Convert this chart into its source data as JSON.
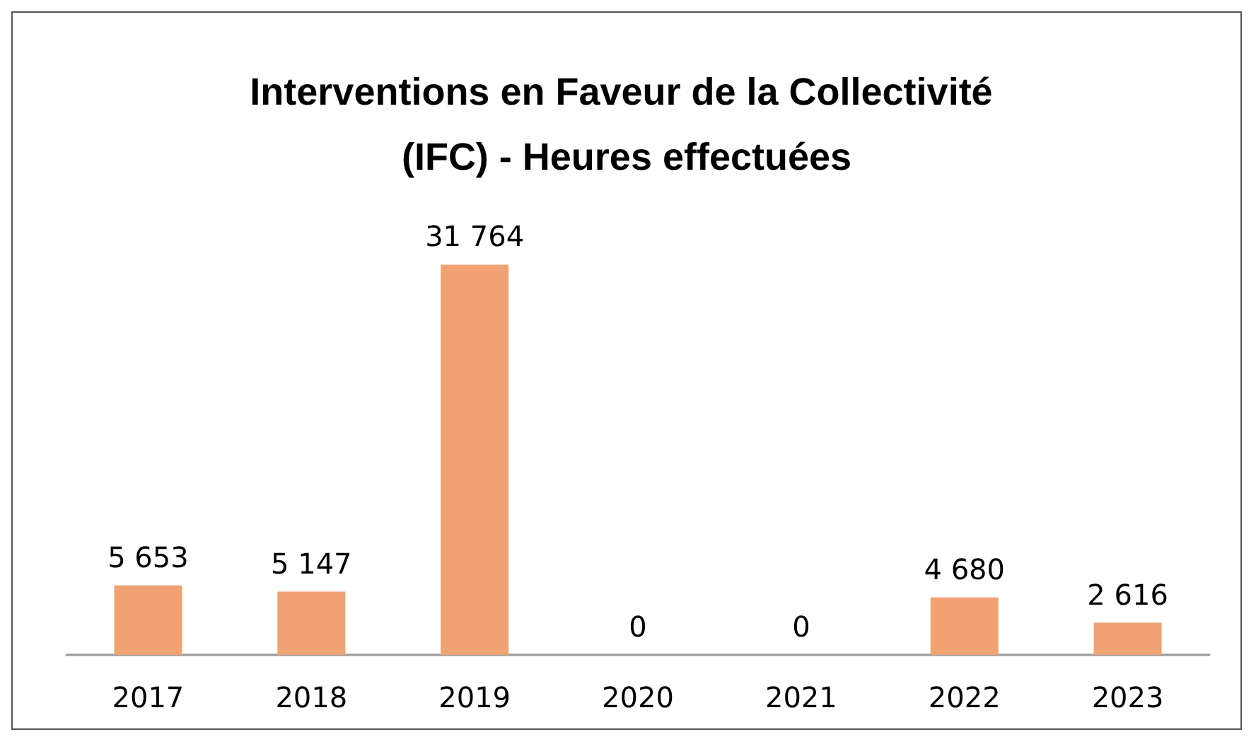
{
  "chart_data": {
    "type": "bar",
    "title": "Interventions en Faveur de la Collectivité (IFC) - Heures effectuées",
    "categories": [
      "2017",
      "2018",
      "2019",
      "2020",
      "2021",
      "2022",
      "2023"
    ],
    "values": [
      5653,
      5147,
      31764,
      0,
      0,
      4680,
      2616
    ],
    "value_labels": [
      "5 653",
      "5 147",
      "31 764",
      "0",
      "0",
      "4 680",
      "2 616"
    ],
    "color": "#f0a272"
  }
}
